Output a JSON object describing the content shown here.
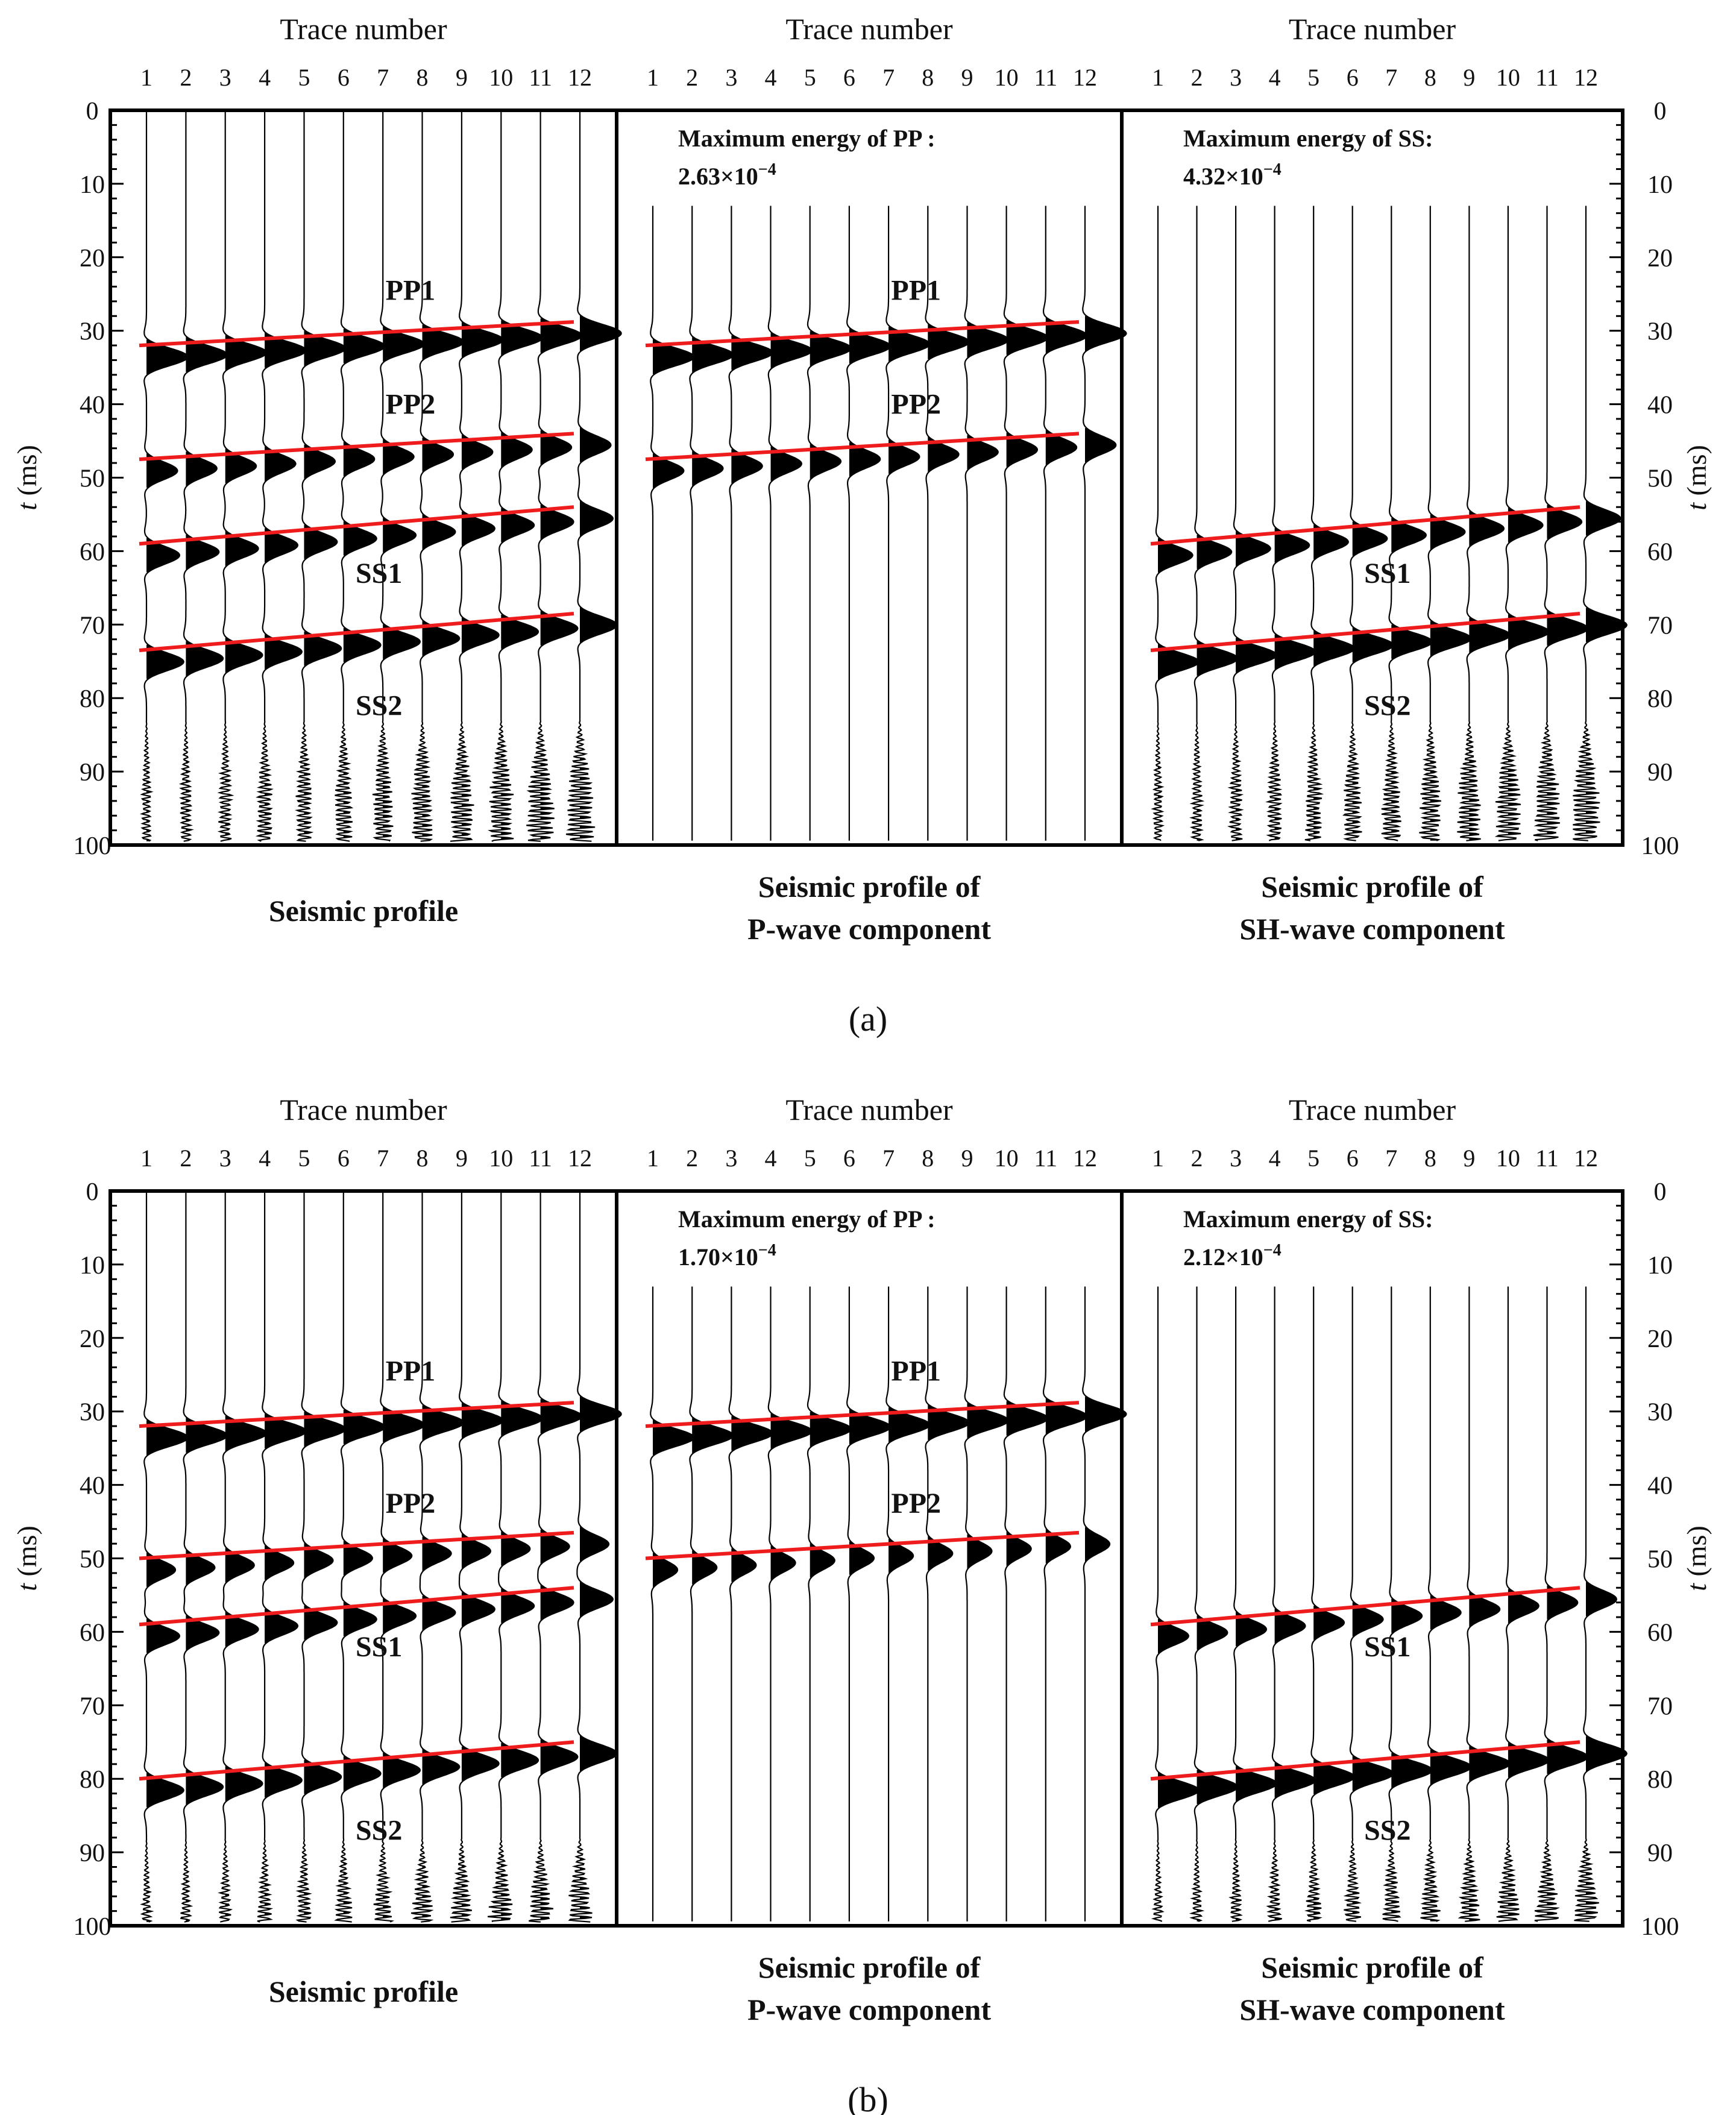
{
  "colors": {
    "trace": "#000000",
    "pick": "#ee1c1c",
    "label": "#ee1c1c",
    "axis": "#000000"
  },
  "chart_data": [
    {
      "figure_label": "(a)",
      "type": "seismic-wiggle",
      "x_axis_label": "Trace number",
      "y_axis_label": "t (ms)",
      "y_axis_label_italic": "t",
      "y_axis_label_unit": " (ms)",
      "trace_numbers": [
        "1",
        "2",
        "3",
        "4",
        "5",
        "6",
        "7",
        "8",
        "9",
        "10",
        "11",
        "12"
      ],
      "y_ticks": [
        "0",
        "10",
        "20",
        "30",
        "40",
        "50",
        "60",
        "70",
        "80",
        "90",
        "100"
      ],
      "ylim": [
        0,
        100
      ],
      "panels": [
        {
          "caption_lines": [
            "Seismic profile"
          ],
          "energy_label": "",
          "energy_value": "",
          "energy_exponent": "",
          "events": [
            {
              "name": "PP1",
              "t_trace1": 32.0,
              "t_trace12": 28.8,
              "amp": 1.0,
              "width": 2.6,
              "filled": true
            },
            {
              "name": "PP2",
              "t_trace1": 47.5,
              "t_trace12": 44.0,
              "amp": 0.75,
              "width": 2.6,
              "filled": true
            },
            {
              "name": "SS1",
              "t_trace1": 59.0,
              "t_trace12": 54.0,
              "amp": 0.8,
              "width": 2.6,
              "filled": true
            },
            {
              "name": "SS2",
              "t_trace1": 73.5,
              "t_trace12": 68.5,
              "amp": 0.9,
              "width": 2.6,
              "filled": true
            }
          ],
          "labels": [
            {
              "text": "PP1",
              "t": 24.5,
              "trace": 7.7
            },
            {
              "text": "PP2",
              "t": 40.0,
              "trace": 7.7
            },
            {
              "text": "SS1",
              "t": 63.0,
              "trace": 6.9
            },
            {
              "text": "SS2",
              "t": 81.0,
              "trace": 6.9
            }
          ],
          "noise_start_t": 83,
          "trace_start_t": 0
        },
        {
          "caption_lines": [
            "Seismic profile of",
            "P-wave component"
          ],
          "energy_label": "Maximum energy of PP :",
          "energy_value": "2.63×10",
          "energy_exponent": "−4",
          "events": [
            {
              "name": "PP1",
              "t_trace1": 32.0,
              "t_trace12": 28.8,
              "amp": 1.0,
              "width": 2.6,
              "filled": true
            },
            {
              "name": "PP2",
              "t_trace1": 47.5,
              "t_trace12": 44.0,
              "amp": 0.75,
              "width": 2.6,
              "filled": true
            }
          ],
          "labels": [
            {
              "text": "PP1",
              "t": 24.5,
              "trace": 7.7
            },
            {
              "text": "PP2",
              "t": 40.0,
              "trace": 7.7
            }
          ],
          "noise_start_t": null,
          "trace_start_t": 13
        },
        {
          "caption_lines": [
            "Seismic profile of",
            "SH-wave component"
          ],
          "energy_label": "Maximum energy of SS:",
          "energy_value": "4.32×10",
          "energy_exponent": "−4",
          "events": [
            {
              "name": "SS1",
              "t_trace1": 59.0,
              "t_trace12": 54.0,
              "amp": 0.85,
              "width": 2.6,
              "filled": true
            },
            {
              "name": "SS2",
              "t_trace1": 73.5,
              "t_trace12": 68.5,
              "amp": 1.0,
              "width": 2.6,
              "filled": true
            }
          ],
          "labels": [
            {
              "text": "SS1",
              "t": 63.0,
              "trace": 6.9
            },
            {
              "text": "SS2",
              "t": 81.0,
              "trace": 6.9
            }
          ],
          "noise_start_t": 83,
          "trace_start_t": 13
        }
      ]
    },
    {
      "figure_label": "(b)",
      "type": "seismic-wiggle",
      "x_axis_label": "Trace number",
      "y_axis_label": "t (ms)",
      "y_axis_label_italic": "t",
      "y_axis_label_unit": " (ms)",
      "trace_numbers": [
        "1",
        "2",
        "3",
        "4",
        "5",
        "6",
        "7",
        "8",
        "9",
        "10",
        "11",
        "12"
      ],
      "y_ticks": [
        "0",
        "10",
        "20",
        "30",
        "40",
        "50",
        "60",
        "70",
        "80",
        "90",
        "100"
      ],
      "ylim": [
        0,
        100
      ],
      "panels": [
        {
          "caption_lines": [
            "Seismic profile"
          ],
          "energy_label": "",
          "energy_value": "",
          "energy_exponent": "",
          "events": [
            {
              "name": "PP1",
              "t_trace1": 32.0,
              "t_trace12": 28.8,
              "amp": 1.0,
              "width": 2.6,
              "filled": true
            },
            {
              "name": "PP2",
              "t_trace1": 50.0,
              "t_trace12": 46.5,
              "amp": 0.7,
              "width": 2.6,
              "filled": true
            },
            {
              "name": "SS1",
              "t_trace1": 59.0,
              "t_trace12": 54.0,
              "amp": 0.8,
              "width": 2.6,
              "filled": true
            },
            {
              "name": "SS2",
              "t_trace1": 80.0,
              "t_trace12": 75.0,
              "amp": 0.9,
              "width": 2.6,
              "filled": true
            }
          ],
          "labels": [
            {
              "text": "PP1",
              "t": 24.5,
              "trace": 7.7
            },
            {
              "text": "PP2",
              "t": 42.5,
              "trace": 7.7
            },
            {
              "text": "SS1",
              "t": 62.0,
              "trace": 6.9
            },
            {
              "text": "SS2",
              "t": 87.0,
              "trace": 6.9
            }
          ],
          "noise_start_t": 88,
          "trace_start_t": 0
        },
        {
          "caption_lines": [
            "Seismic profile of",
            "P-wave component"
          ],
          "energy_label": "Maximum energy of PP :",
          "energy_value": "1.70×10",
          "energy_exponent": "−4",
          "events": [
            {
              "name": "PP1",
              "t_trace1": 32.0,
              "t_trace12": 28.8,
              "amp": 1.0,
              "width": 2.6,
              "filled": true
            },
            {
              "name": "PP2",
              "t_trace1": 50.0,
              "t_trace12": 46.5,
              "amp": 0.6,
              "width": 2.6,
              "filled": true
            }
          ],
          "labels": [
            {
              "text": "PP1",
              "t": 24.5,
              "trace": 7.7
            },
            {
              "text": "PP2",
              "t": 42.5,
              "trace": 7.7
            }
          ],
          "noise_start_t": null,
          "trace_start_t": 13
        },
        {
          "caption_lines": [
            "Seismic profile of",
            "SH-wave component"
          ],
          "energy_label": "Maximum energy of SS:",
          "energy_value": "2.12×10",
          "energy_exponent": "−4",
          "events": [
            {
              "name": "SS1",
              "t_trace1": 59.0,
              "t_trace12": 54.0,
              "amp": 0.75,
              "width": 2.6,
              "filled": true
            },
            {
              "name": "SS2",
              "t_trace1": 80.0,
              "t_trace12": 75.0,
              "amp": 1.0,
              "width": 2.6,
              "filled": true
            }
          ],
          "labels": [
            {
              "text": "SS1",
              "t": 62.0,
              "trace": 6.9
            },
            {
              "text": "SS2",
              "t": 87.0,
              "trace": 6.9
            }
          ],
          "noise_start_t": 88,
          "trace_start_t": 13
        }
      ]
    }
  ]
}
